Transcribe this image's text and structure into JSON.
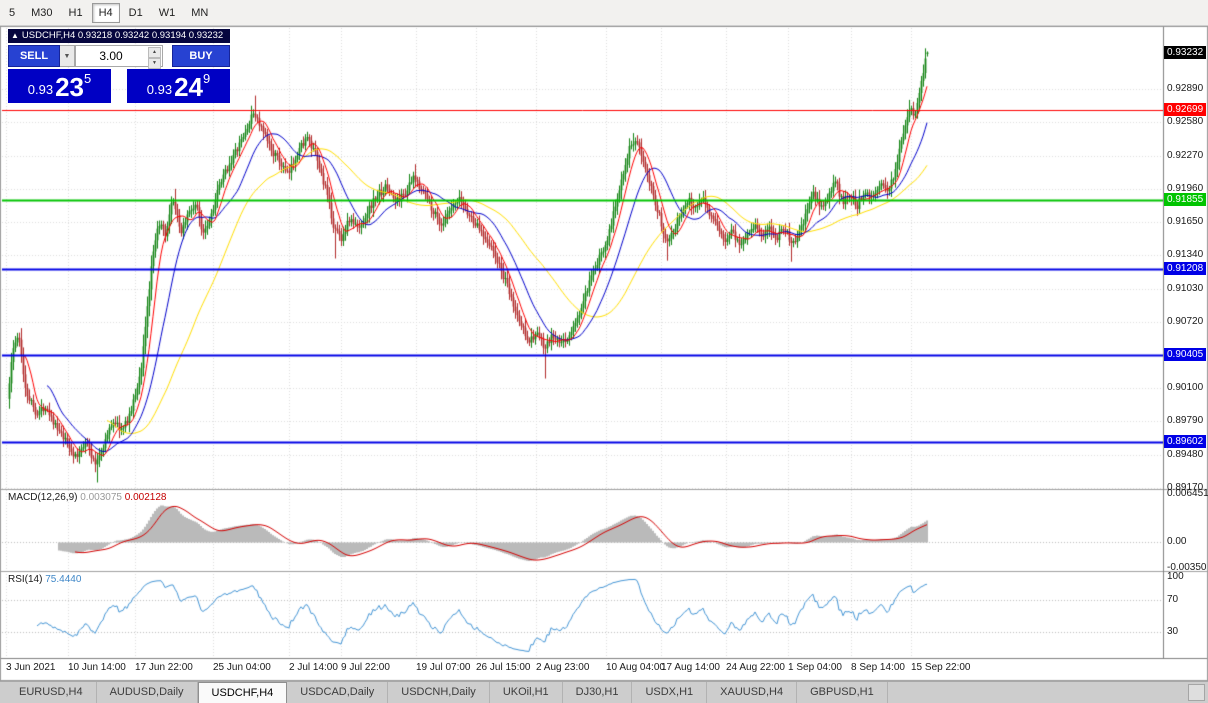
{
  "toolbar": {
    "periods": [
      "5",
      "M30",
      "H1",
      "H4",
      "D1",
      "W1",
      "MN"
    ],
    "active": "H4"
  },
  "trade_panel": {
    "collapse_icon": "▲",
    "info_text": "USDCHF,H4 0.93218 0.93242 0.93194 0.93232",
    "sell_label": "SELL",
    "buy_label": "BUY",
    "volume": "3.00",
    "sell_price": {
      "prefix": "0.93",
      "big": "23",
      "sup": "5"
    },
    "buy_price": {
      "prefix": "0.93",
      "big": "24",
      "sup": "9"
    }
  },
  "indicators": {
    "macd": {
      "name": "MACD(12,26,9)",
      "value_main": "0.003075",
      "value_signal": "0.002128",
      "axis": [
        "0.006451",
        "0.00",
        "-0.00350"
      ],
      "range": [
        -0.0035,
        0.006451
      ]
    },
    "rsi": {
      "name": "RSI(14)",
      "value": "75.4440",
      "axis": [
        "100",
        "70",
        "30"
      ],
      "levels": [
        70,
        30
      ]
    }
  },
  "tabs": {
    "items": [
      "EURUSD,H4",
      "AUDUSD,Daily",
      "USDCHF,H4",
      "USDCAD,Daily",
      "USDCNH,Daily",
      "UKOil,H1",
      "DJ30,H1",
      "USDX,H1",
      "XAUUSD,H4",
      "GBPUSD,H1"
    ],
    "active_index": 2
  },
  "chart_data": {
    "type": "candlestick",
    "symbol": "USDCHF",
    "timeframe": "H4",
    "ohlc": {
      "o": 0.93218,
      "h": 0.93242,
      "l": 0.93194,
      "c": 0.93232
    },
    "bars": 460,
    "ylim": [
      0.8915,
      0.9333
    ],
    "y_axis": [
      "0.92890",
      "0.92580",
      "0.92270",
      "0.91960",
      "0.91650",
      "0.91340",
      "0.91030",
      "0.90720",
      "0.90410",
      "0.90100",
      "0.89790",
      "0.89480",
      "0.89170"
    ],
    "x_axis": [
      {
        "label": "3 Jun 2021",
        "x": 6
      },
      {
        "label": "10 Jun 14:00",
        "x": 68
      },
      {
        "label": "17 Jun 22:00",
        "x": 135
      },
      {
        "label": "25 Jun 04:00",
        "x": 213
      },
      {
        "label": "2 Jul 14:00",
        "x": 289
      },
      {
        "label": "9 Jul 22:00",
        "x": 341
      },
      {
        "label": "19 Jul 07:00",
        "x": 416
      },
      {
        "label": "26 Jul 15:00",
        "x": 476
      },
      {
        "label": "2 Aug 23:00",
        "x": 536
      },
      {
        "label": "10 Aug 04:00",
        "x": 606
      },
      {
        "label": "17 Aug 14:00",
        "x": 661
      },
      {
        "label": "24 Aug 22:00",
        "x": 726
      },
      {
        "label": "1 Sep 04:00",
        "x": 788
      },
      {
        "label": "8 Sep 14:00",
        "x": 851
      },
      {
        "label": "15 Sep 22:00",
        "x": 911
      }
    ],
    "current_tag": {
      "label": "0.93232",
      "price": 0.93232,
      "color": "#000000"
    },
    "levels": [
      {
        "label": "0.92699",
        "price": 0.92699,
        "color": "#ff0000",
        "width": 1
      },
      {
        "label": "0.91855",
        "price": 0.91855,
        "color": "#00c400",
        "width": 2
      },
      {
        "label": "0.91208",
        "price": 0.91208,
        "color": "#0000e6",
        "width": 2
      },
      {
        "label": "0.90405",
        "price": 0.90405,
        "color": "#0000e6",
        "width": 2
      },
      {
        "label": "0.89602",
        "price": 0.89602,
        "color": "#0000e6",
        "width": 2
      }
    ],
    "moving_averages": [
      {
        "period": 8,
        "color": "#ff0000"
      },
      {
        "period": 20,
        "color": "#0000cc"
      },
      {
        "period": 50,
        "color": "#ffdf00"
      }
    ],
    "colors": {
      "up": "#128312",
      "down": "#b22a2a",
      "grid": "#dcdcdc",
      "macd_hist": "#b3b3b3",
      "macd_signal": "#d40000",
      "rsi_line": "#4596d6"
    },
    "price_path": [
      [
        0.0,
        0.9
      ],
      [
        0.006,
        0.9046
      ],
      [
        0.012,
        0.906
      ],
      [
        0.02,
        0.9008
      ],
      [
        0.032,
        0.8986
      ],
      [
        0.042,
        0.8994
      ],
      [
        0.055,
        0.897
      ],
      [
        0.065,
        0.8958
      ],
      [
        0.075,
        0.8944
      ],
      [
        0.085,
        0.8962
      ],
      [
        0.095,
        0.8938
      ],
      [
        0.105,
        0.8958
      ],
      [
        0.115,
        0.898
      ],
      [
        0.125,
        0.897
      ],
      [
        0.135,
        0.899
      ],
      [
        0.145,
        0.9025
      ],
      [
        0.152,
        0.9085
      ],
      [
        0.158,
        0.9132
      ],
      [
        0.165,
        0.9165
      ],
      [
        0.172,
        0.915
      ],
      [
        0.18,
        0.9188
      ],
      [
        0.188,
        0.9155
      ],
      [
        0.196,
        0.9172
      ],
      [
        0.205,
        0.9182
      ],
      [
        0.212,
        0.9156
      ],
      [
        0.22,
        0.9168
      ],
      [
        0.228,
        0.9192
      ],
      [
        0.238,
        0.9214
      ],
      [
        0.248,
        0.923
      ],
      [
        0.258,
        0.9247
      ],
      [
        0.268,
        0.9268
      ],
      [
        0.276,
        0.9252
      ],
      [
        0.286,
        0.9234
      ],
      [
        0.296,
        0.9221
      ],
      [
        0.305,
        0.9208
      ],
      [
        0.315,
        0.923
      ],
      [
        0.325,
        0.9244
      ],
      [
        0.335,
        0.9227
      ],
      [
        0.345,
        0.9199
      ],
      [
        0.355,
        0.916
      ],
      [
        0.363,
        0.915
      ],
      [
        0.372,
        0.9168
      ],
      [
        0.382,
        0.9158
      ],
      [
        0.392,
        0.9176
      ],
      [
        0.402,
        0.919
      ],
      [
        0.412,
        0.9198
      ],
      [
        0.422,
        0.9184
      ],
      [
        0.432,
        0.9192
      ],
      [
        0.442,
        0.9206
      ],
      [
        0.452,
        0.9194
      ],
      [
        0.462,
        0.9177
      ],
      [
        0.472,
        0.9162
      ],
      [
        0.482,
        0.9176
      ],
      [
        0.492,
        0.9186
      ],
      [
        0.502,
        0.9171
      ],
      [
        0.512,
        0.916
      ],
      [
        0.522,
        0.9148
      ],
      [
        0.532,
        0.913
      ],
      [
        0.542,
        0.9108
      ],
      [
        0.552,
        0.9082
      ],
      [
        0.56,
        0.9066
      ],
      [
        0.568,
        0.9054
      ],
      [
        0.576,
        0.9062
      ],
      [
        0.584,
        0.9046
      ],
      [
        0.592,
        0.9058
      ],
      [
        0.602,
        0.9051
      ],
      [
        0.612,
        0.906
      ],
      [
        0.622,
        0.908
      ],
      [
        0.632,
        0.9106
      ],
      [
        0.642,
        0.9128
      ],
      [
        0.652,
        0.915
      ],
      [
        0.66,
        0.9176
      ],
      [
        0.668,
        0.9208
      ],
      [
        0.676,
        0.9234
      ],
      [
        0.684,
        0.9238
      ],
      [
        0.692,
        0.9222
      ],
      [
        0.7,
        0.9198
      ],
      [
        0.708,
        0.9172
      ],
      [
        0.716,
        0.9148
      ],
      [
        0.724,
        0.9158
      ],
      [
        0.732,
        0.9172
      ],
      [
        0.74,
        0.9186
      ],
      [
        0.748,
        0.9178
      ],
      [
        0.756,
        0.919
      ],
      [
        0.764,
        0.9172
      ],
      [
        0.772,
        0.9158
      ],
      [
        0.78,
        0.9148
      ],
      [
        0.788,
        0.9158
      ],
      [
        0.796,
        0.9142
      ],
      [
        0.804,
        0.9155
      ],
      [
        0.812,
        0.9163
      ],
      [
        0.82,
        0.9152
      ],
      [
        0.828,
        0.9158
      ],
      [
        0.836,
        0.915
      ],
      [
        0.844,
        0.9162
      ],
      [
        0.852,
        0.9144
      ],
      [
        0.86,
        0.9152
      ],
      [
        0.868,
        0.9172
      ],
      [
        0.876,
        0.9192
      ],
      [
        0.884,
        0.9178
      ],
      [
        0.892,
        0.9188
      ],
      [
        0.9,
        0.9203
      ],
      [
        0.908,
        0.9182
      ],
      [
        0.916,
        0.9192
      ],
      [
        0.924,
        0.918
      ],
      [
        0.932,
        0.9196
      ],
      [
        0.94,
        0.9188
      ],
      [
        0.948,
        0.92
      ],
      [
        0.956,
        0.9193
      ],
      [
        0.964,
        0.921
      ],
      [
        0.972,
        0.9242
      ],
      [
        0.98,
        0.927
      ],
      [
        0.986,
        0.9265
      ],
      [
        0.991,
        0.9284
      ],
      [
        0.996,
        0.9308
      ],
      [
        1.0,
        0.9323
      ]
    ],
    "spikes": [
      {
        "f": 0.012,
        "high": 0.9066
      },
      {
        "f": 0.095,
        "low": 0.8922
      },
      {
        "f": 0.18,
        "high": 0.9196
      },
      {
        "f": 0.268,
        "high": 0.9283
      },
      {
        "f": 0.355,
        "low": 0.9131
      },
      {
        "f": 0.442,
        "high": 0.9219
      },
      {
        "f": 0.584,
        "low": 0.9019
      },
      {
        "f": 0.68,
        "high": 0.9248
      },
      {
        "f": 0.716,
        "low": 0.9129
      },
      {
        "f": 0.852,
        "low": 0.9128
      },
      {
        "f": 0.98,
        "high": 0.9279
      }
    ]
  }
}
